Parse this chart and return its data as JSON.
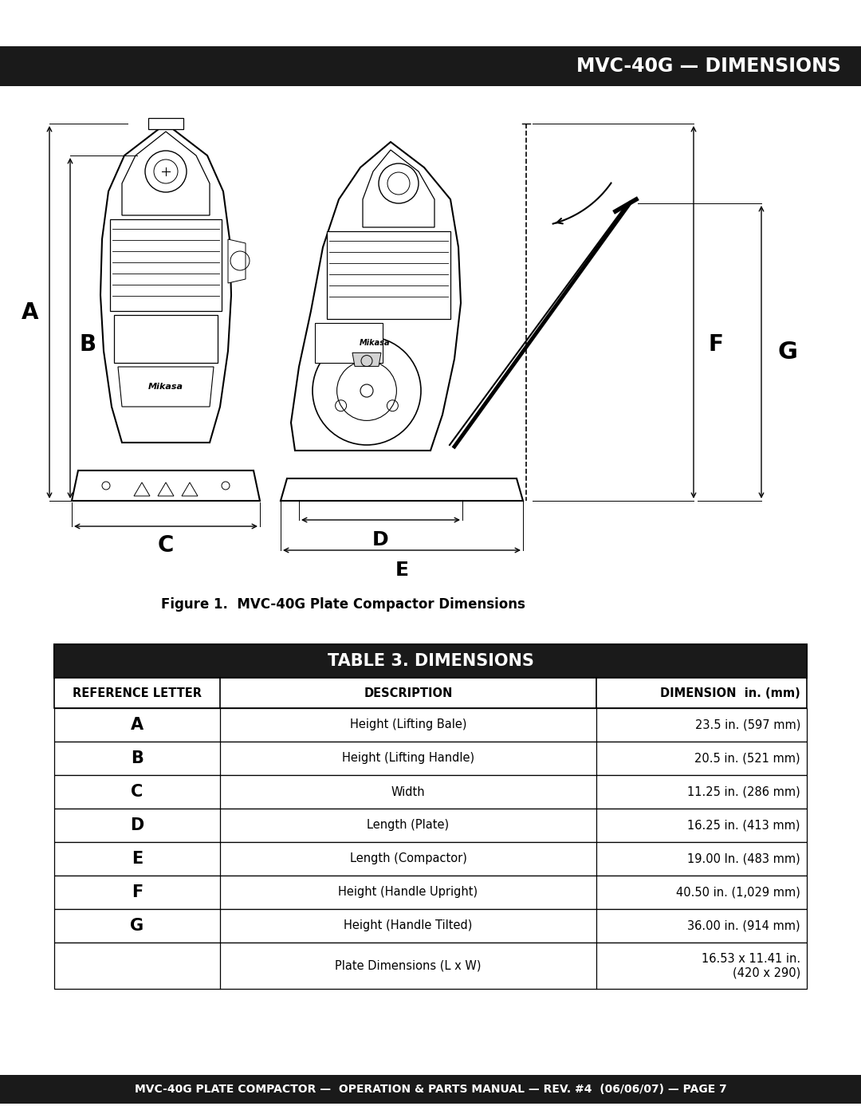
{
  "title_bar_text": "MVC-40G — DIMENSIONS",
  "title_bar_bg": "#1a1a1a",
  "title_bar_text_color": "#ffffff",
  "figure_caption": "Figure 1.  MVC-40G Plate Compactor Dimensions",
  "table_title": "TABLE 3. DIMENSIONS",
  "table_header_bg": "#1a1a1a",
  "table_header_text_color": "#ffffff",
  "col_headers": [
    "REFERENCE LETTER",
    "DESCRIPTION",
    "DIMENSION  in. (mm)"
  ],
  "rows": [
    [
      "A",
      "Height (Lifting Bale)",
      "23.5 in. (597 mm)"
    ],
    [
      "B",
      "Height (Lifting Handle)",
      "20.5 in. (521 mm)"
    ],
    [
      "C",
      "Width",
      "11.25 in. (286 mm)"
    ],
    [
      "D",
      "Length (Plate)",
      "16.25 in. (413 mm)"
    ],
    [
      "E",
      "Length (Compactor)",
      "19.00 In. (483 mm)"
    ],
    [
      "F",
      "Height (Handle Upright)",
      "40.50 in. (1,029 mm)"
    ],
    [
      "G",
      "Height (Handle Tilted)",
      "36.00 in. (914 mm)"
    ],
    [
      "",
      "Plate Dimensions (L x W)",
      "16.53 x 11.41 in.\n(420 x 290)"
    ]
  ],
  "footer_text": "MVC-40G PLATE COMPACTOR —  OPERATION & PARTS MANUAL — REV. #4  (06/06/07) — PAGE 7",
  "footer_bg": "#1a1a1a",
  "footer_text_color": "#ffffff",
  "page_bg": "#ffffff"
}
